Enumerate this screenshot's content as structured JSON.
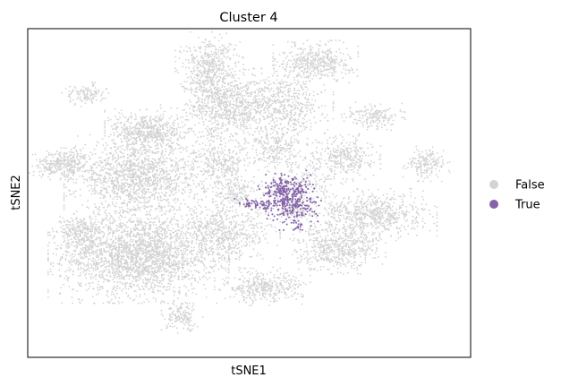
{
  "chart_data": {
    "type": "scatter",
    "title": "Cluster 4",
    "xlabel": "tSNE1",
    "ylabel": "tSNE2",
    "xticks": [],
    "yticks": [],
    "xlim": [
      -50,
      50
    ],
    "ylim": [
      -45,
      45
    ],
    "grid": false,
    "legend": {
      "placement": "right",
      "entries": [
        "False",
        "True"
      ]
    },
    "series": [
      {
        "name": "False",
        "color": "#d3d3d3",
        "clusters": [
          {
            "cx": -25,
            "cy": -17,
            "sx": 8.5,
            "sy": 5.5,
            "n": 2400
          },
          {
            "cx": -25,
            "cy": 4,
            "sx": 7.0,
            "sy": 5.0,
            "n": 1500
          },
          {
            "cx": -38,
            "cy": -11,
            "sx": 2.6,
            "sy": 2.2,
            "n": 250
          },
          {
            "cx": -42,
            "cy": 8,
            "sx": 3.4,
            "sy": 1.8,
            "n": 350
          },
          {
            "cx": -37,
            "cy": 27,
            "sx": 2.2,
            "sy": 1.4,
            "n": 120
          },
          {
            "cx": -23,
            "cy": 17,
            "sx": 4.0,
            "sy": 2.6,
            "n": 550
          },
          {
            "cx": -9,
            "cy": 34,
            "sx": 3.2,
            "sy": 4.2,
            "n": 550
          },
          {
            "cx": -5,
            "cy": 24,
            "sx": 4.0,
            "sy": 3.6,
            "n": 500
          },
          {
            "cx": 7,
            "cy": 24,
            "sx": 5.0,
            "sy": 4.2,
            "n": 650
          },
          {
            "cx": 15,
            "cy": 36,
            "sx": 4.0,
            "sy": 2.4,
            "n": 450
          },
          {
            "cx": -5,
            "cy": -11,
            "sx": 5.0,
            "sy": 4.0,
            "n": 600
          },
          {
            "cx": 3,
            "cy": -26,
            "sx": 4.5,
            "sy": 2.0,
            "n": 380
          },
          {
            "cx": -15,
            "cy": -34,
            "sx": 2.0,
            "sy": 1.8,
            "n": 150
          },
          {
            "cx": 20,
            "cy": -15,
            "sx": 4.5,
            "sy": 3.0,
            "n": 550
          },
          {
            "cx": 28,
            "cy": -6,
            "sx": 6.0,
            "sy": 3.0,
            "n": 700
          },
          {
            "cx": 22,
            "cy": 10,
            "sx": 3.2,
            "sy": 2.6,
            "n": 300
          },
          {
            "cx": 28,
            "cy": 21,
            "sx": 3.0,
            "sy": 1.6,
            "n": 180
          },
          {
            "cx": 40,
            "cy": 8,
            "sx": 2.2,
            "sy": 2.0,
            "n": 180
          },
          {
            "cx": -6,
            "cy": 8,
            "sx": 3.0,
            "sy": 2.6,
            "n": 250
          },
          {
            "cx": -3,
            "cy": 0,
            "sx": 3.0,
            "sy": 2.0,
            "n": 200
          },
          {
            "cx": 6,
            "cy": 12,
            "sx": 3.0,
            "sy": 2.6,
            "n": 250
          },
          {
            "cx": 10,
            "cy": -5,
            "sx": 1.6,
            "sy": 1.4,
            "n": 80
          },
          {
            "cx": 14,
            "cy": 4,
            "sx": 4.0,
            "sy": 4.0,
            "n": 150
          },
          {
            "cx": -8,
            "cy": 18,
            "sx": 5.0,
            "sy": 5.0,
            "n": 200
          },
          {
            "cx": 10,
            "cy": 0,
            "sx": 3.0,
            "sy": 3.0,
            "n": 120
          }
        ]
      },
      {
        "name": "True",
        "color": "#8563a9",
        "clusters": [
          {
            "cx": 10,
            "cy": -2,
            "sx": 2.6,
            "sy": 3.4,
            "n": 320
          },
          {
            "cx": 6,
            "cy": 1,
            "sx": 1.8,
            "sy": 1.8,
            "n": 80
          },
          {
            "cx": 2,
            "cy": -3,
            "sx": 2.2,
            "sy": 0.7,
            "n": 70
          },
          {
            "cx": 11,
            "cy": -9,
            "sx": 0.5,
            "sy": 0.6,
            "n": 10
          }
        ]
      }
    ]
  }
}
